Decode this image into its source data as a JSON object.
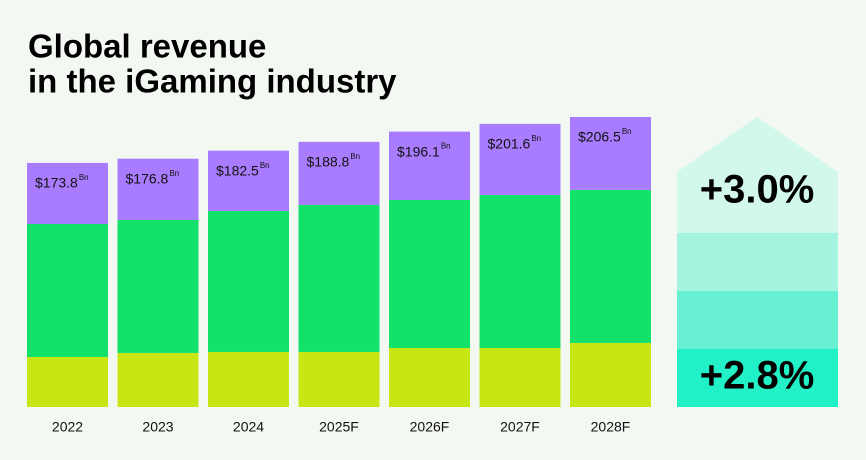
{
  "chart_data": {
    "type": "stacked-bar",
    "title": [
      "Global revenue",
      "in the iGaming industry"
    ],
    "categories": [
      "2022",
      "2023",
      "2024",
      "2025F",
      "2026F",
      "2027F",
      "2028F"
    ],
    "series": [
      {
        "color": "#c8e614",
        "values": [
          35.6,
          38.5,
          39.2,
          39.2,
          42.0,
          42.0,
          45.6
        ]
      },
      {
        "color": "#12e16a",
        "values": [
          94.7,
          94.7,
          100.4,
          104.7,
          105.4,
          109.0,
          109.0
        ]
      },
      {
        "color": "#a97cff",
        "values": [
          43.5,
          43.6,
          42.9,
          44.9,
          48.7,
          50.6,
          51.9
        ]
      }
    ],
    "totals": [
      173.8,
      176.8,
      182.5,
      188.8,
      196.1,
      201.6,
      206.5
    ],
    "total_labels": [
      "$173.8",
      "$176.8",
      "$182.5",
      "$188.8",
      "$196.1",
      "$201.6",
      "$206.5"
    ],
    "total_unit": "Bn",
    "growth_labels": [
      "+3.0%",
      "+2.8%"
    ]
  }
}
